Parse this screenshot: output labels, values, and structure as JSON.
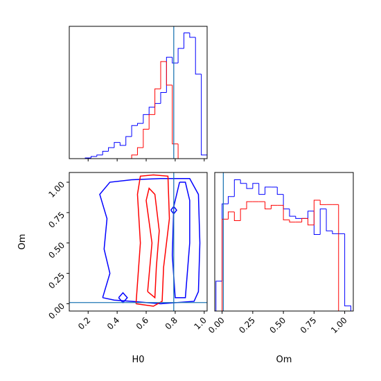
{
  "chart_data": [
    {
      "type": "histogram",
      "bins": [
        0.14,
        0.18,
        0.22,
        0.26,
        0.3,
        0.34,
        0.38,
        0.42,
        0.46,
        0.5,
        0.54,
        0.58,
        0.62,
        0.66,
        0.7,
        0.74,
        0.78,
        0.82,
        0.86,
        0.9,
        0.94,
        0.98,
        1.02
      ],
      "series": [
        {
          "color": "#0000ff",
          "values": [
            0,
            1,
            3,
            5,
            10,
            15,
            22,
            18,
            30,
            45,
            48,
            60,
            70,
            75,
            90,
            138,
            130,
            150,
            171,
            165,
            115,
            5
          ]
        },
        {
          "color": "#ff0000",
          "values": [
            0,
            0,
            0,
            0,
            0,
            0,
            0,
            0,
            0,
            5,
            15,
            40,
            60,
            95,
            132,
            100,
            20,
            0,
            0,
            0,
            0,
            0
          ]
        }
      ],
      "xlim": [
        0.07,
        1.02
      ],
      "ylim": [
        0,
        180
      ],
      "xticks": [
        0.2,
        0.4,
        0.6,
        0.8,
        1.0
      ],
      "truth_x": 0.79,
      "truth_color": "#1f77b4"
    },
    {
      "type": "contour",
      "xlabel": "H0",
      "ylabel": "Om",
      "series": [
        {
          "color": "#0000ff",
          "x": [
            0.3,
            0.35,
            0.31,
            0.33,
            0.28,
            0.35,
            0.5,
            0.7,
            0.9,
            0.96,
            0.97,
            0.96,
            0.93,
            0.7,
            0.5,
            0.38,
            0.3
          ],
          "y": [
            0.05,
            0.25,
            0.45,
            0.7,
            0.9,
            1.0,
            1.02,
            1.03,
            1.03,
            0.9,
            0.5,
            0.1,
            0.02,
            0.0,
            0.02,
            0.03,
            0.05
          ]
        },
        {
          "color": "#0000ff",
          "x": [
            0.83,
            0.79,
            0.78,
            0.8,
            0.87,
            0.9,
            0.9,
            0.87,
            0.83
          ],
          "y": [
            1.0,
            0.8,
            0.4,
            0.05,
            0.05,
            0.5,
            0.85,
            1.0,
            1.0
          ]
        },
        {
          "color": "#0000ff",
          "x": [
            0.41,
            0.44,
            0.47,
            0.44,
            0.41
          ],
          "y": [
            0.05,
            0.09,
            0.05,
            0.01,
            0.05
          ]
        },
        {
          "color": "#0000ff",
          "x": [
            0.77,
            0.79,
            0.81,
            0.79,
            0.77
          ],
          "y": [
            0.77,
            0.8,
            0.77,
            0.74,
            0.77
          ]
        },
        {
          "color": "#ff0000",
          "x": [
            0.53,
            0.56,
            0.54,
            0.56,
            0.65,
            0.75,
            0.76,
            0.72,
            0.71,
            0.65,
            0.53
          ],
          "y": [
            0.0,
            0.5,
            0.9,
            1.05,
            1.06,
            1.05,
            0.7,
            0.3,
            0.02,
            -0.02,
            0.0
          ]
        },
        {
          "color": "#ff0000",
          "x": [
            0.61,
            0.64,
            0.6,
            0.62,
            0.66,
            0.69,
            0.67,
            0.66,
            0.61
          ],
          "y": [
            0.1,
            0.5,
            0.85,
            0.95,
            0.9,
            0.6,
            0.3,
            0.05,
            0.1
          ]
        }
      ],
      "xlim": [
        0.07,
        1.02
      ],
      "ylim": [
        -0.06,
        1.08
      ],
      "xticks": [
        0.2,
        0.4,
        0.6,
        0.8,
        {
          "value": 1,
          "label": "1.0"
        }
      ],
      "yticks": [
        {
          "value": 0,
          "label": "0.00"
        },
        {
          "value": 0.25,
          "label": "0.25"
        },
        {
          "value": 0.5,
          "label": "0.50"
        },
        {
          "value": 0.75,
          "label": "0.75"
        },
        {
          "value": 1,
          "label": "1.00"
        }
      ],
      "truth_x": 0.79,
      "truth_y": 0.01,
      "truth_color": "#1f77b4"
    },
    {
      "type": "histogram",
      "xlabel": "Om",
      "bins": [
        -0.05,
        0,
        0.05,
        0.1,
        0.15,
        0.2,
        0.25,
        0.3,
        0.35,
        0.4,
        0.45,
        0.5,
        0.55,
        0.6,
        0.65,
        0.7,
        0.75,
        0.8,
        0.85,
        0.9,
        0.95,
        1.0,
        1.05
      ],
      "series": [
        {
          "color": "#0000ff",
          "values": [
            41,
            147,
            157,
            180,
            175,
            168,
            175,
            160,
            170,
            170,
            160,
            140,
            130,
            127,
            127,
            137,
            105,
            140,
            110,
            106,
            106,
            7
          ]
        },
        {
          "color": "#ff0000",
          "values": [
            0,
            126,
            136,
            124,
            140,
            150,
            150,
            150,
            140,
            145,
            145,
            125,
            122,
            122,
            127,
            118,
            152,
            146,
            146,
            146,
            0,
            0
          ]
        }
      ],
      "xlim": [
        -0.06,
        1.07
      ],
      "ylim": [
        0,
        190
      ],
      "xticks": [
        {
          "value": 0,
          "label": "0.00"
        },
        {
          "value": 0.25,
          "label": "0.25"
        },
        {
          "value": 0.5,
          "label": "0.50"
        },
        {
          "value": 0.75,
          "label": "0.75"
        },
        {
          "value": 1,
          "label": "1.00"
        }
      ],
      "truth_x": 0.01,
      "truth_color": "#1f77b4"
    }
  ]
}
